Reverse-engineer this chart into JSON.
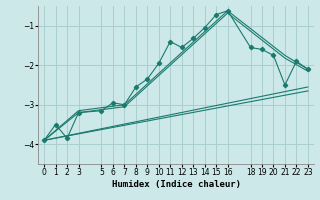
{
  "xlabel": "Humidex (Indice chaleur)",
  "bg_color": "#cce8e8",
  "grid_color": "#aacfcf",
  "line_color": "#1a7a6e",
  "xlim": [
    -0.5,
    23.5
  ],
  "ylim": [
    -4.5,
    -0.5
  ],
  "yticks": [
    -4,
    -3,
    -2,
    -1
  ],
  "xtick_labels": [
    "0",
    "1",
    "2",
    "3",
    "5",
    "6",
    "7",
    "8",
    "9",
    "10",
    "11",
    "12",
    "13",
    "14",
    "15",
    "16",
    "18",
    "19",
    "20",
    "21",
    "22",
    "23"
  ],
  "xtick_positions": [
    0,
    1,
    2,
    3,
    5,
    6,
    7,
    8,
    9,
    10,
    11,
    12,
    13,
    14,
    15,
    16,
    18,
    19,
    20,
    21,
    22,
    23
  ],
  "series_with_markers": [
    {
      "x": [
        0,
        1,
        2,
        3,
        5,
        6,
        7,
        8,
        9,
        10,
        11,
        12,
        13,
        14,
        15,
        16,
        18,
        19,
        20,
        21,
        22,
        23
      ],
      "y": [
        -3.9,
        -3.5,
        -3.85,
        -3.2,
        -3.15,
        -2.95,
        -3.0,
        -2.55,
        -2.35,
        -1.95,
        -1.4,
        -1.55,
        -1.32,
        -1.05,
        -0.72,
        -0.62,
        -1.55,
        -1.6,
        -1.75,
        -2.5,
        -1.9,
        -2.1
      ]
    }
  ],
  "series_straight": [
    {
      "x": [
        0,
        3,
        7,
        16,
        21,
        23
      ],
      "y": [
        -3.9,
        -3.15,
        -3.0,
        -0.62,
        -1.75,
        -2.1
      ]
    },
    {
      "x": [
        0,
        3,
        7,
        16,
        21,
        23
      ],
      "y": [
        -3.9,
        -3.2,
        -3.05,
        -0.68,
        -1.82,
        -2.15
      ]
    },
    {
      "x": [
        0,
        23
      ],
      "y": [
        -3.9,
        -2.55
      ]
    },
    {
      "x": [
        0,
        23
      ],
      "y": [
        -3.9,
        -2.65
      ]
    }
  ]
}
